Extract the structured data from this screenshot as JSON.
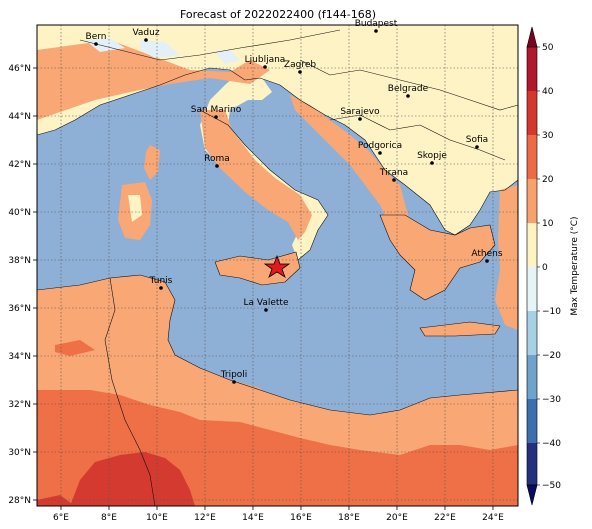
{
  "title": "Forecast of 2022022400 (f144-168)",
  "colorbar": {
    "label": "Max Temperature (°C)",
    "ticks": [
      "50",
      "40",
      "30",
      "20",
      "10",
      "0",
      "−10",
      "−20",
      "−30",
      "−40",
      "−50"
    ],
    "colors": [
      "#7f0023",
      "#b2182b",
      "#d6372b",
      "#ee6a44",
      "#f9a06d",
      "#fdf3c3",
      "#e6f4f8",
      "#a8d0e4",
      "#6fa3cc",
      "#3d6fae",
      "#24307f",
      "#0b0c5e"
    ]
  },
  "map": {
    "lon_labels": [
      "6°E",
      "8°E",
      "10°E",
      "12°E",
      "14°E",
      "16°E",
      "18°E",
      "20°E",
      "22°E",
      "24°E"
    ],
    "lat_labels": [
      "46°N",
      "44°N",
      "42°N",
      "40°N",
      "38°N",
      "36°N",
      "34°N",
      "32°N",
      "30°N",
      "28°N"
    ],
    "grid": true,
    "colors": {
      "sea": "#8fb0d6",
      "warm": "#f9a774",
      "hot": "#ef6f46",
      "hotter": "#d53a30",
      "mild": "#fdf3c5",
      "cool": "#e3f0f7"
    },
    "cities": [
      {
        "name": "Bern"
      },
      {
        "name": "Vaduz"
      },
      {
        "name": "Budapest"
      },
      {
        "name": "Ljubljana"
      },
      {
        "name": "Zagreb"
      },
      {
        "name": "San Marino"
      },
      {
        "name": "Belgrade"
      },
      {
        "name": "Sarajevo"
      },
      {
        "name": "Sofia"
      },
      {
        "name": "Podgorica"
      },
      {
        "name": "Skopje"
      },
      {
        "name": "Roma"
      },
      {
        "name": "Tirana"
      },
      {
        "name": "Athens"
      },
      {
        "name": "Tunis"
      },
      {
        "name": "La Valette"
      },
      {
        "name": "Tripoli"
      }
    ],
    "marker": "star"
  }
}
